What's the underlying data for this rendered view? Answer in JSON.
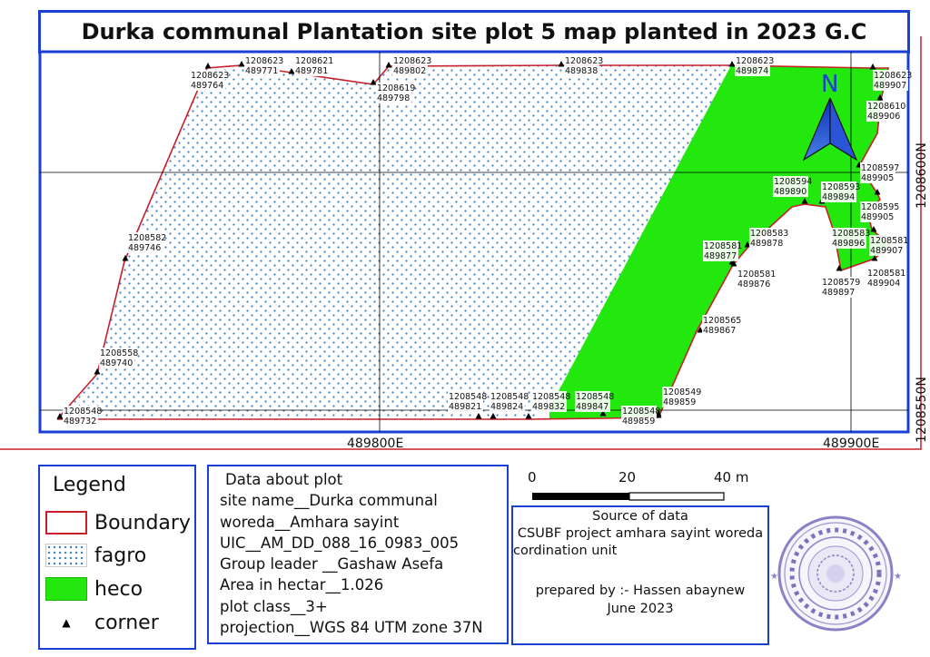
{
  "title": "Durka communal Plantation site plot 5 map planted in 2023 G.C",
  "map": {
    "north_label": "N",
    "grid": {
      "x_labels": [
        "489800E",
        "489900E"
      ],
      "y_labels": [
        "1208600N",
        "1208550N"
      ]
    },
    "colors": {
      "boundary": "#c8202a",
      "fagro_dot": "#3a7fc8",
      "heco": "#22e80e",
      "frame": "#1a3fd4"
    },
    "corners": [
      {
        "n": "1208548",
        "e": "489732"
      },
      {
        "n": "1208558",
        "e": "489740"
      },
      {
        "n": "1208582",
        "e": "489746"
      },
      {
        "n": "1208623",
        "e": "489764"
      },
      {
        "n": "1208623",
        "e": "489771"
      },
      {
        "n": "1208621",
        "e": "489781"
      },
      {
        "n": "1208619",
        "e": "489798"
      },
      {
        "n": "1208623",
        "e": "489802"
      },
      {
        "n": "1208623",
        "e": "489838"
      },
      {
        "n": "1208623",
        "e": "489874"
      },
      {
        "n": "1208623",
        "e": "489907"
      },
      {
        "n": "1208610",
        "e": "489906"
      },
      {
        "n": "1208597",
        "e": "489905"
      },
      {
        "n": "1208593",
        "e": "489894"
      },
      {
        "n": "1208595",
        "e": "489905"
      },
      {
        "n": "1208594",
        "e": "489890"
      },
      {
        "n": "1208583",
        "e": "489896"
      },
      {
        "n": "1208581",
        "e": "489907"
      },
      {
        "n": "1208579",
        "e": "489897"
      },
      {
        "n": "1208581",
        "e": "489904"
      },
      {
        "n": "1208583",
        "e": "489878"
      },
      {
        "n": "1208581",
        "e": "489877"
      },
      {
        "n": "1208581",
        "e": "489876"
      },
      {
        "n": "1208565",
        "e": "489867"
      },
      {
        "n": "1208549",
        "e": "489859"
      },
      {
        "n": "1208548",
        "e": "489859"
      },
      {
        "n": "1208548",
        "e": "489847"
      },
      {
        "n": "1208548",
        "e": "489832"
      },
      {
        "n": "1208548",
        "e": "489824"
      },
      {
        "n": "1208548",
        "e": "489821"
      }
    ]
  },
  "legend": {
    "title": "Legend",
    "items": [
      {
        "label": "Boundary",
        "symbol": "boundary-swatch"
      },
      {
        "label": "fagro",
        "symbol": "dotted-swatch"
      },
      {
        "label": "heco",
        "symbol": "green-swatch"
      },
      {
        "label": "corner",
        "symbol": "triangle"
      }
    ]
  },
  "plot_data": {
    "title": "Data about plot",
    "lines": [
      "site name__Durka communal",
      "woreda__Amhara sayint",
      "UIC__AM_DD_088_16_0983_005",
      "Group leader __Gashaw Asefa",
      "Area in hectar__1.026",
      "plot class__3+",
      "projection__WGS 84 UTM zone 37N"
    ]
  },
  "scale": {
    "labels": [
      "0",
      "20",
      "40 m"
    ]
  },
  "source": {
    "title": "Source of data",
    "line1": "CSUBF project amhara sayint woreda",
    "line2": "cordination unit",
    "prepared": "prepared by :- Hassen abaynew",
    "date": "June 2023"
  }
}
